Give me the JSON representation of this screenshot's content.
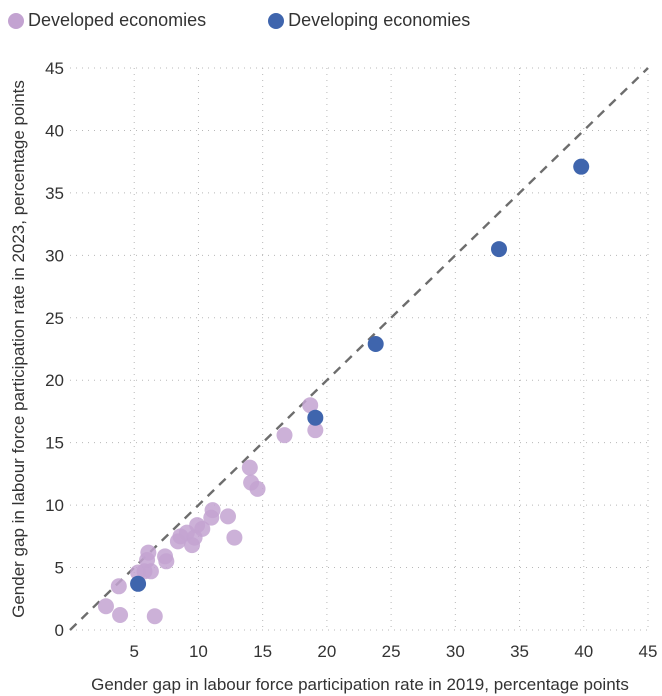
{
  "chart_data": {
    "type": "scatter",
    "title": "",
    "xlabel": "Gender gap in labour force participation rate in 2019, percentage points",
    "ylabel": "Gender gap in labour force participation rate in 2023, percentage points",
    "xlim": [
      0,
      45
    ],
    "ylim": [
      0,
      45
    ],
    "xticks": [
      "0",
      "5",
      "10",
      "15",
      "20",
      "25",
      "30",
      "35",
      "40",
      "45"
    ],
    "yticks": [
      "0",
      "5",
      "10",
      "15",
      "20",
      "25",
      "30",
      "35",
      "40",
      "45"
    ],
    "grid": "dotted",
    "legend_position": "top-left",
    "reference_line": "y = x (dashed)",
    "series": [
      {
        "name": "Developed economies",
        "color": "#c3a3d1",
        "points": [
          [
            2.8,
            1.9
          ],
          [
            3.8,
            3.5
          ],
          [
            3.9,
            1.2
          ],
          [
            5.3,
            4.6
          ],
          [
            5.8,
            4.7
          ],
          [
            6.0,
            5.6
          ],
          [
            6.1,
            6.2
          ],
          [
            6.3,
            4.7
          ],
          [
            6.6,
            1.1
          ],
          [
            7.4,
            5.9
          ],
          [
            7.5,
            5.5
          ],
          [
            8.4,
            7.1
          ],
          [
            8.6,
            7.5
          ],
          [
            9.1,
            7.8
          ],
          [
            9.5,
            6.8
          ],
          [
            9.7,
            7.4
          ],
          [
            9.9,
            8.4
          ],
          [
            10.3,
            8.1
          ],
          [
            11.0,
            9.0
          ],
          [
            11.1,
            9.6
          ],
          [
            12.3,
            9.1
          ],
          [
            12.8,
            7.4
          ],
          [
            14.0,
            13.0
          ],
          [
            14.1,
            11.8
          ],
          [
            14.6,
            11.3
          ],
          [
            16.7,
            15.6
          ],
          [
            18.7,
            18.0
          ],
          [
            19.1,
            16.0
          ]
        ]
      },
      {
        "name": "Developing economies",
        "color": "#3f65ad",
        "points": [
          [
            5.3,
            3.7
          ],
          [
            19.1,
            17.0
          ],
          [
            23.8,
            22.9
          ],
          [
            33.4,
            30.5
          ],
          [
            39.8,
            37.1
          ]
        ]
      }
    ]
  }
}
